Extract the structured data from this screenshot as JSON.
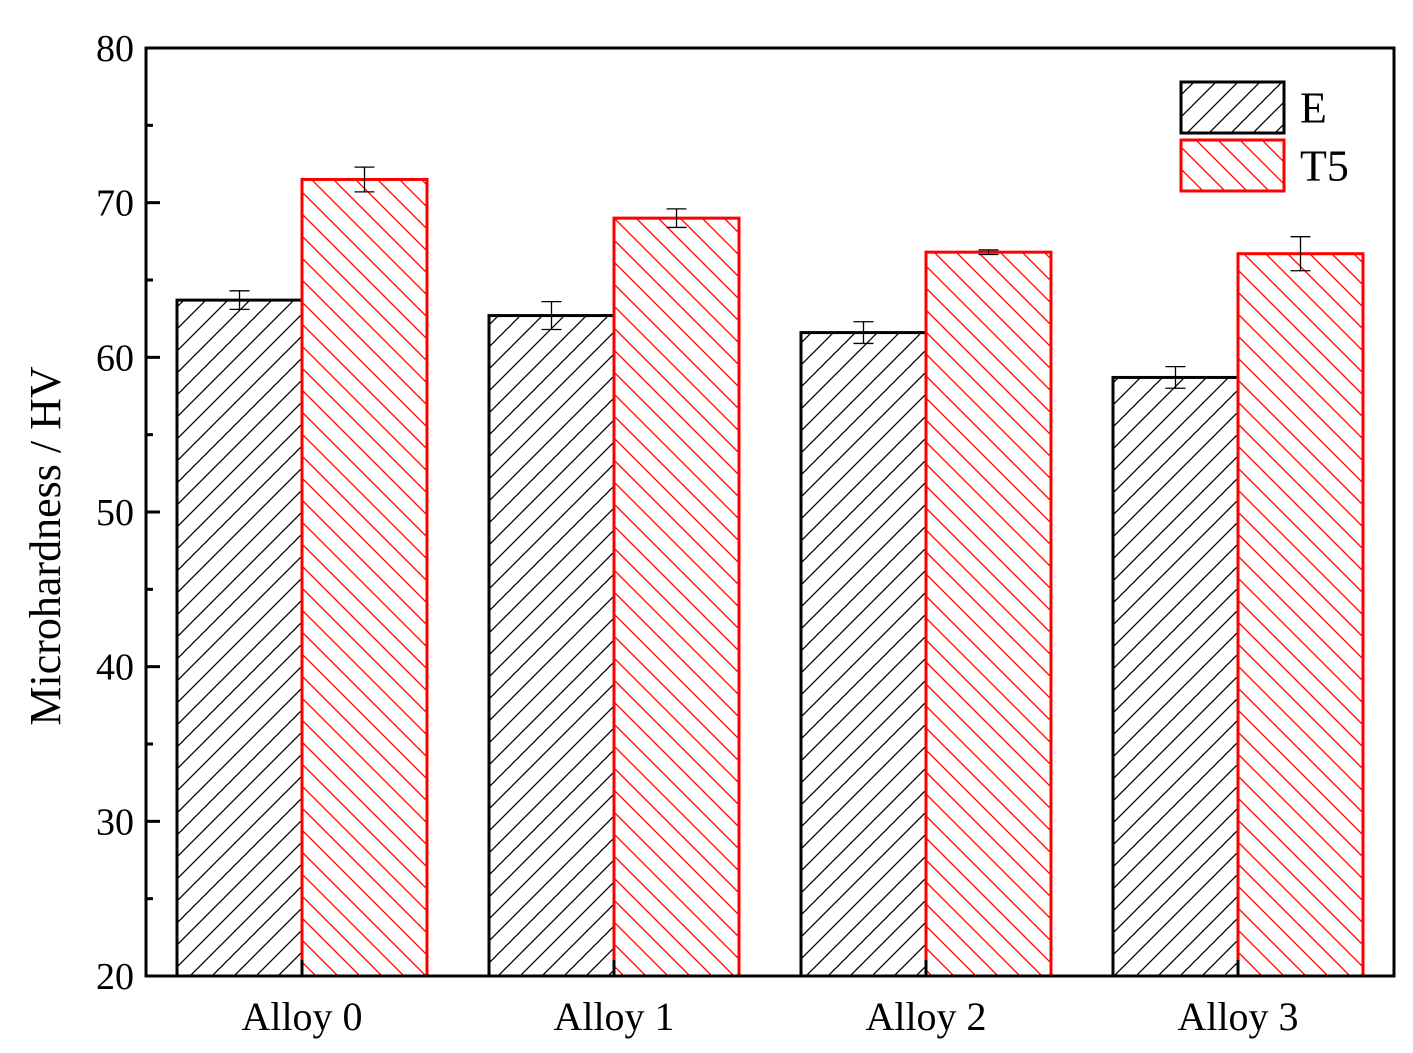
{
  "chart_data": {
    "type": "bar",
    "categories": [
      "Alloy 0",
      "Alloy 1",
      "Alloy 2",
      "Alloy 3"
    ],
    "series": [
      {
        "name": "E",
        "values": [
          63.7,
          62.7,
          61.6,
          58.7
        ],
        "errors": [
          0.6,
          0.9,
          0.7,
          0.7
        ],
        "color": "#000000",
        "hatch": "forward"
      },
      {
        "name": "T5",
        "values": [
          71.5,
          69.0,
          66.8,
          66.7
        ],
        "errors": [
          0.8,
          0.6,
          0.15,
          1.1
        ],
        "color": "#ff0000",
        "hatch": "backward"
      }
    ],
    "title": "",
    "xlabel": "",
    "ylabel": "Microhardness / HV",
    "ylim": [
      20,
      80
    ],
    "yticks": [
      "20",
      "30",
      "40",
      "50",
      "60",
      "70",
      "80"
    ],
    "grid": false,
    "legend_position": "top-right"
  }
}
